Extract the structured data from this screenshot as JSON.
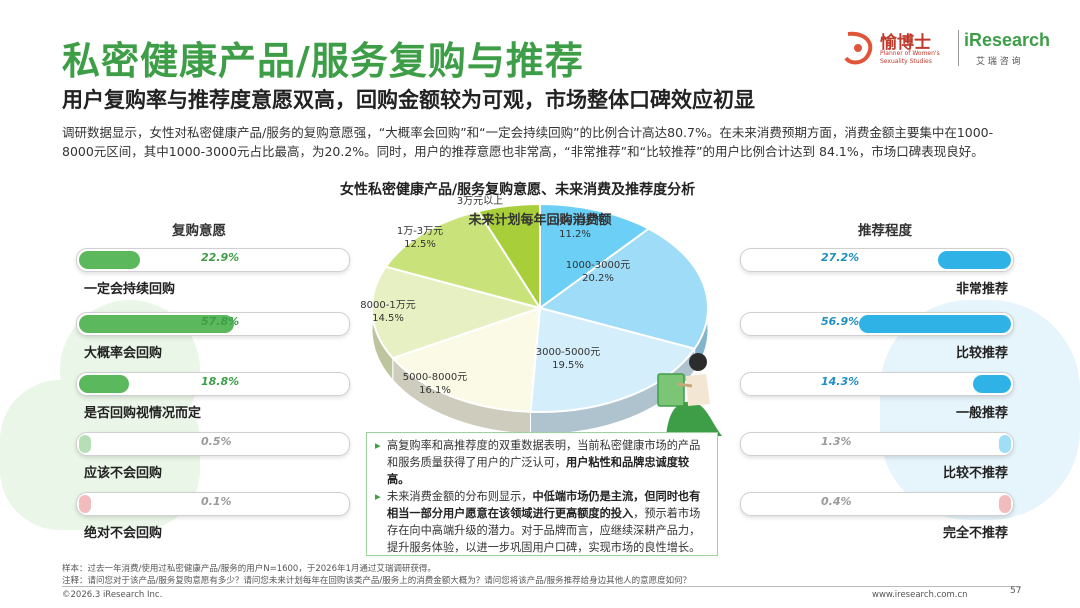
{
  "header": {
    "title": "私密健康产品/服务复购与推荐",
    "subtitle": "用户复购率与推荐度意愿双高，回购金额较为可观，市场整体口碑效应初显",
    "intro": "调研数据显示，女性对私密健康产品/服务的复购意愿强，“大概率会回购”和“一定会持续回购”的比例合计高达80.7%。在未来消费预期方面，消费金额主要集中在1000-8000元区间，其中1000-3000元占比最高，为20.2%。同时，用户的推荐意愿也非常高，“非常推荐”和“比较推荐”的用户比例合计达到 84.1%，市场口碑表现良好。"
  },
  "logos": {
    "yu_name": "愉博士",
    "yu_tag_1": "Planner of Women's",
    "yu_tag_2": "Sexuality Studies",
    "ir_name": "iResearch",
    "ir_cn": "艾 瑞 咨 询"
  },
  "chart_title": "女性私密健康产品/服务复购意愿、未来消费及推荐度分析",
  "left_panel": {
    "heading": "复购意愿",
    "items": [
      {
        "label": "一定会持续回购",
        "value": 0.229,
        "value_text": "22.9%"
      },
      {
        "label": "大概率会回购",
        "value": 0.578,
        "value_text": "57.8%"
      },
      {
        "label": "是否回购视情况而定",
        "value": 0.188,
        "value_text": "18.8%"
      },
      {
        "label": "应该不会回购",
        "value": 0.005,
        "value_text": "0.5%"
      },
      {
        "label": "绝对不会回购",
        "value": 0.001,
        "value_text": "0.1%"
      }
    ]
  },
  "right_panel": {
    "heading": "推荐程度",
    "items": [
      {
        "label": "非常推荐",
        "value": 0.272,
        "value_text": "27.2%"
      },
      {
        "label": "比较推荐",
        "value": 0.569,
        "value_text": "56.9%"
      },
      {
        "label": "一般推荐",
        "value": 0.143,
        "value_text": "14.3%"
      },
      {
        "label": "比较不推荐",
        "value": 0.013,
        "value_text": "1.3%"
      },
      {
        "label": "完全不推荐",
        "value": 0.004,
        "value_text": "0.4%"
      }
    ]
  },
  "chart_data": {
    "type": "pie",
    "title": "未来计划每年回购消费额",
    "slices": [
      {
        "label": "1000元以下",
        "value": 11.2,
        "value_text": "11.2%",
        "color": "#6ccff6"
      },
      {
        "label": "1000-3000元",
        "value": 20.2,
        "value_text": "20.2%",
        "color": "#9fdcf7"
      },
      {
        "label": "3000-5000元",
        "value": 19.5,
        "value_text": "19.5%",
        "color": "#d4eefb"
      },
      {
        "label": "5000-8000元",
        "value": 16.1,
        "value_text": "16.1%",
        "color": "#fbfae7"
      },
      {
        "label": "8000-1万元",
        "value": 14.5,
        "value_text": "14.5%",
        "color": "#e7f0c2"
      },
      {
        "label": "1万-3万元",
        "value": 12.5,
        "value_text": "12.5%",
        "color": "#c9e27a"
      },
      {
        "label": "3万元以上",
        "value": 6.0,
        "value_text": "",
        "color": "#a8cf3a"
      }
    ]
  },
  "insight": {
    "p1": "高复购率和高推荐度的双重数据表明，当前私密健康市场的产品和服务质量获得了用户的广泛认可，",
    "p1_bold": "用户粘性和品牌忠诚度较高。",
    "p2": "未来消费金额的分布则显示，",
    "p2_bold": "中低端市场仍是主流，但同时也有相当一部分用户愿意在该领域进行更高额度的投入",
    "p2_rest": "，预示着市场存在向中高端升级的潜力。对于品牌而言，应继续深耕产品力，提升服务体验，以进一步巩固用户口碑，实现市场的良性增长。"
  },
  "footer": {
    "sample": "样本：过去一年消费/使用过私密健康产品/服务的用户N=1600，于2026年1月通过艾瑞调研获得。",
    "note": "注释：请问您对于该产品/服务复购意愿有多少？请问您未来计划每年在回购该类产品/服务上的消费金额大概为？请问您将该产品/服务推荐给身边其他人的意愿度如何？",
    "copyright": "©2026.3 iResearch Inc.",
    "website": "www.iresearch.com.cn",
    "page": "57"
  },
  "colors": {
    "title_green": "#3e9e47",
    "left_fill": "#5cb85c",
    "right_fill": "#2fb3e6"
  }
}
